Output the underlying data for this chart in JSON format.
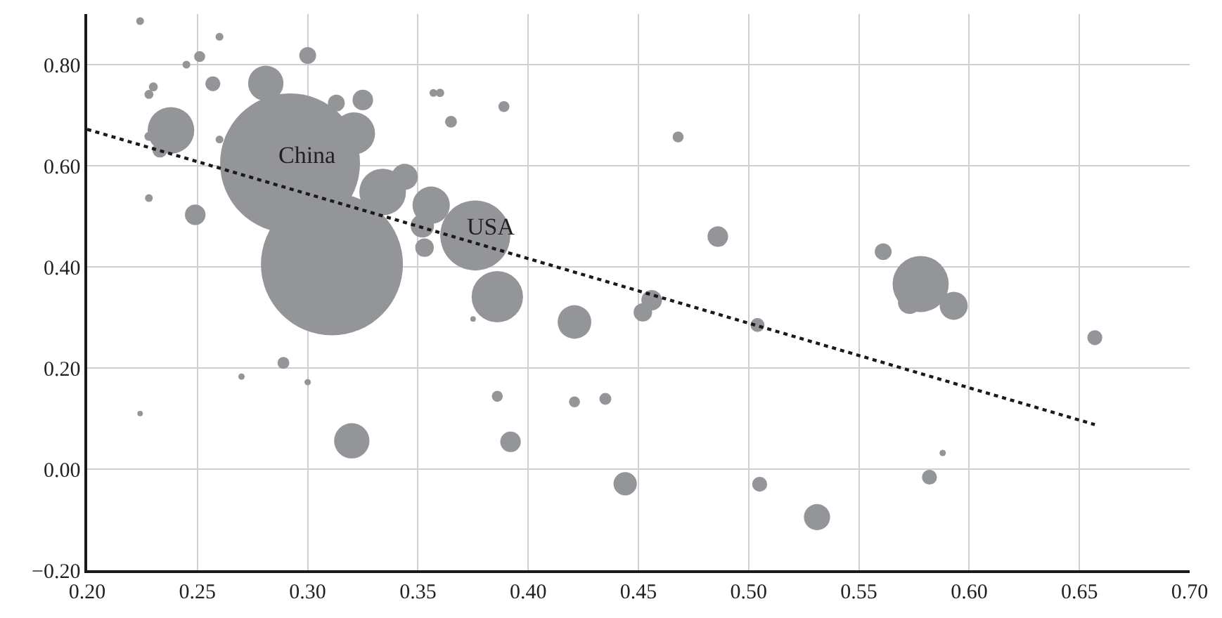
{
  "chart_data": {
    "type": "bubble",
    "xlim": [
      0.2,
      0.7
    ],
    "xticks": [
      {
        "value": 0.2,
        "label": "0.20"
      },
      {
        "value": 0.25,
        "label": "0.25"
      },
      {
        "value": 0.3,
        "label": "0.30"
      },
      {
        "value": 0.35,
        "label": "0.35"
      },
      {
        "value": 0.4,
        "label": "0.40"
      },
      {
        "value": 0.45,
        "label": "0.45"
      },
      {
        "value": 0.5,
        "label": "0.50"
      },
      {
        "value": 0.55,
        "label": "0.55"
      },
      {
        "value": 0.6,
        "label": "0.60"
      },
      {
        "value": 0.65,
        "label": "0.65"
      },
      {
        "value": 0.7,
        "label": "0.70"
      }
    ],
    "ylim": [
      -0.2,
      0.9
    ],
    "yticks": [
      {
        "value": -0.2,
        "label": "−0.20"
      },
      {
        "value": 0,
        "label": "0.00"
      },
      {
        "value": 0.2,
        "label": "0.20"
      },
      {
        "value": 0.4,
        "label": "0.40"
      },
      {
        "value": 0.6,
        "label": "0.60"
      },
      {
        "value": 0.8,
        "label": "0.80"
      }
    ],
    "grid": true,
    "legend": false,
    "series": [
      {
        "color": "#939598",
        "x": [
          0.224,
          0.26,
          0.245,
          0.251,
          0.3,
          0.257,
          0.23,
          0.228,
          0.281,
          0.313,
          0.325,
          0.238,
          0.228,
          0.233,
          0.292,
          0.321,
          0.334,
          0.344,
          0.26,
          0.228,
          0.249,
          0.311,
          0.356,
          0.352,
          0.353,
          0.357,
          0.36,
          0.365,
          0.389,
          0.376,
          0.386,
          0.375,
          0.421,
          0.289,
          0.27,
          0.3,
          0.224,
          0.32,
          0.386,
          0.392,
          0.421,
          0.435,
          0.444,
          0.468,
          0.486,
          0.456,
          0.452,
          0.504,
          0.505,
          0.531,
          0.561,
          0.578,
          0.573,
          0.593,
          0.588,
          0.582,
          0.657
        ],
        "values": [
          0.886,
          0.855,
          0.8,
          0.816,
          0.818,
          0.762,
          0.756,
          0.741,
          0.763,
          0.724,
          0.73,
          0.67,
          0.658,
          0.631,
          0.605,
          0.664,
          0.548,
          0.578,
          0.652,
          0.536,
          0.503,
          0.405,
          0.522,
          0.481,
          0.438,
          0.744,
          0.744,
          0.687,
          0.717,
          0.462,
          0.341,
          0.297,
          0.291,
          0.21,
          0.183,
          0.172,
          0.11,
          0.056,
          0.144,
          0.054,
          0.133,
          0.139,
          -0.029,
          0.657,
          0.46,
          0.334,
          0.31,
          0.285,
          -0.03,
          -0.095,
          0.43,
          0.366,
          0.33,
          0.323,
          0.032,
          -0.016,
          0.26
        ],
        "sizes": [
          0.003,
          0.003,
          0.003,
          0.006,
          0.014,
          0.011,
          0.004,
          0.004,
          0.062,
          0.014,
          0.021,
          0.108,
          0.004,
          0.011,
          0.97,
          0.088,
          0.108,
          0.034,
          0.003,
          0.003,
          0.021,
          1,
          0.069,
          0.027,
          0.017,
          0.003,
          0.0035,
          0.007,
          0.006,
          0.243,
          0.131,
          0.0015,
          0.056,
          0.007,
          0.002,
          0.002,
          0.0015,
          0.062,
          0.006,
          0.021,
          0.006,
          0.007,
          0.027,
          0.006,
          0.021,
          0.021,
          0.017,
          0.0097,
          0.011,
          0.034,
          0.014,
          0.156,
          0.027,
          0.039,
          0.002,
          0.011,
          0.011
        ]
      },
      {
        "type": "line",
        "color": "#1a1a1a",
        "line_style": "dotted",
        "x": [
          0.2,
          0.657
        ],
        "values": [
          0.672,
          0.088
        ]
      }
    ],
    "annotations": [
      {
        "text": "China",
        "x": 0.292,
        "y": 0.605
      },
      {
        "text": "USA",
        "x": 0.376,
        "y": 0.462
      }
    ]
  }
}
